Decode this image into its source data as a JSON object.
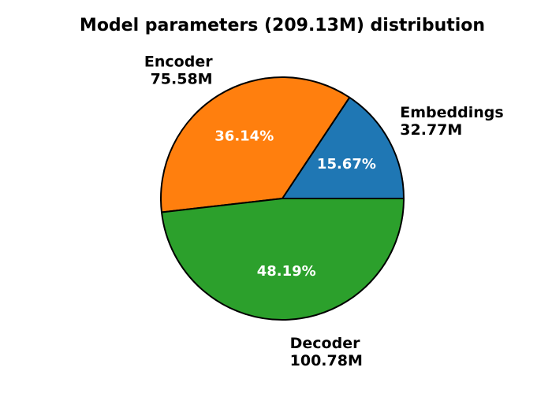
{
  "chart_data": {
    "type": "pie",
    "title": "Model parameters (209.13M) distribution",
    "start_angle_deg": 0,
    "direction": "counterclockwise",
    "edge_color": "#000000",
    "slices": [
      {
        "name": "Embeddings",
        "value_label": "32.77M",
        "value": 32.77,
        "percent": 15.67,
        "percent_label": "15.67%",
        "color": "#1f77b4"
      },
      {
        "name": "Encoder",
        "value_label": "75.58M",
        "value": 75.58,
        "percent": 36.14,
        "percent_label": "36.14%",
        "color": "#ff7f0e"
      },
      {
        "name": "Decoder",
        "value_label": "100.78M",
        "value": 100.78,
        "percent": 48.19,
        "percent_label": "48.19%",
        "color": "#2ca02c"
      }
    ]
  }
}
